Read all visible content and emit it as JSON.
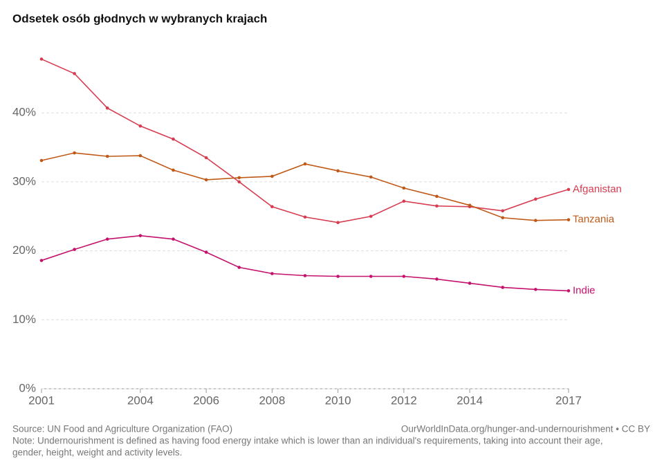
{
  "chart_data": {
    "type": "line",
    "title": "Odsetek osób głodnych w wybranych krajach",
    "x": [
      2001,
      2002,
      2003,
      2004,
      2005,
      2006,
      2007,
      2008,
      2009,
      2010,
      2011,
      2012,
      2013,
      2014,
      2015,
      2016,
      2017
    ],
    "series": [
      {
        "name": "Afganistan",
        "color": "#d73c50",
        "values": [
          47.8,
          45.7,
          40.7,
          38.1,
          36.2,
          33.5,
          30.0,
          26.4,
          24.9,
          24.1,
          25.0,
          27.2,
          26.5,
          26.4,
          25.8,
          27.5,
          28.9
        ]
      },
      {
        "name": "Tanzania",
        "color": "#c05917",
        "values": [
          33.1,
          34.2,
          33.7,
          33.8,
          31.7,
          30.3,
          30.6,
          30.8,
          32.6,
          31.6,
          30.7,
          29.1,
          27.9,
          26.6,
          24.8,
          24.4,
          24.5
        ]
      },
      {
        "name": "Indie",
        "color": "#c4116c",
        "values": [
          18.6,
          20.2,
          21.7,
          22.2,
          21.7,
          19.8,
          17.6,
          16.7,
          16.4,
          16.3,
          16.3,
          16.3,
          15.9,
          15.3,
          14.7,
          14.4,
          14.2
        ]
      }
    ],
    "xlim": [
      2001,
      2017
    ],
    "xticks": [
      2001,
      2004,
      2006,
      2008,
      2010,
      2012,
      2014,
      2017
    ],
    "ylim": [
      0,
      50
    ],
    "yticks": [
      {
        "value": 0,
        "label": "0%"
      },
      {
        "value": 10,
        "label": "10%"
      },
      {
        "value": 20,
        "label": "20%"
      },
      {
        "value": 30,
        "label": "30%"
      },
      {
        "value": 40,
        "label": "40%"
      }
    ],
    "grid": true,
    "source": "Source: UN Food and Agriculture Organization (FAO)",
    "url": "OurWorldInData.org/hunger-and-undernourishment • CC BY",
    "note": [
      "Note: Undernourishment is defined as having food energy intake which is lower than an individual's requirements, taking into account their age,",
      "gender, height, weight and activity levels."
    ]
  }
}
